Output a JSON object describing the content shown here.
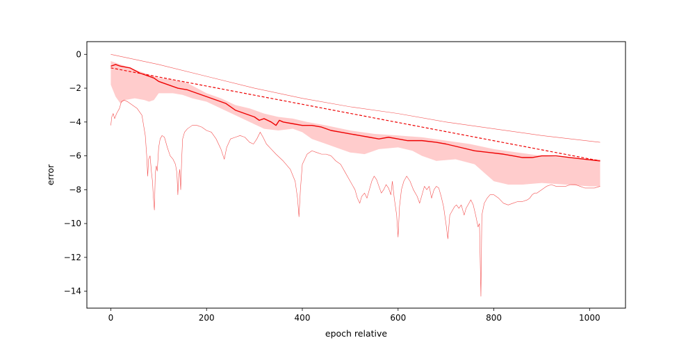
{
  "chart_data": {
    "type": "line",
    "title": "",
    "xlabel": "epoch relative",
    "ylabel": "error",
    "xlim": [
      -50,
      1075
    ],
    "ylim": [
      -15,
      0.75
    ],
    "xticks": [
      0,
      200,
      400,
      600,
      800,
      1000
    ],
    "yticks": [
      0,
      -2,
      -4,
      -6,
      -8,
      -10,
      -12,
      -14
    ],
    "grid": false,
    "legend": "none",
    "colors": {
      "line": "#ee0000",
      "band": "#ff9999"
    },
    "series": [
      {
        "role": "band",
        "upper": [
          [
            0,
            -0.4
          ],
          [
            20,
            -0.6
          ],
          [
            50,
            -0.9
          ],
          [
            80,
            -1.2
          ],
          [
            100,
            -1.4
          ],
          [
            130,
            -1.5
          ],
          [
            160,
            -1.7
          ],
          [
            180,
            -2.0
          ],
          [
            200,
            -2.3
          ],
          [
            230,
            -2.6
          ],
          [
            260,
            -3.0
          ],
          [
            290,
            -3.2
          ],
          [
            320,
            -3.5
          ],
          [
            350,
            -3.7
          ],
          [
            380,
            -3.8
          ],
          [
            410,
            -4.0
          ],
          [
            450,
            -4.2
          ],
          [
            500,
            -4.5
          ],
          [
            550,
            -4.7
          ],
          [
            600,
            -4.8
          ],
          [
            650,
            -4.9
          ],
          [
            700,
            -5.1
          ],
          [
            750,
            -5.3
          ],
          [
            800,
            -5.6
          ],
          [
            850,
            -5.8
          ],
          [
            900,
            -6.0
          ],
          [
            950,
            -6.1
          ],
          [
            1000,
            -6.2
          ],
          [
            1022,
            -6.2
          ]
        ],
        "lower": [
          [
            0,
            -1.8
          ],
          [
            10,
            -2.5
          ],
          [
            20,
            -2.9
          ],
          [
            30,
            -2.7
          ],
          [
            50,
            -2.6
          ],
          [
            70,
            -2.7
          ],
          [
            80,
            -2.8
          ],
          [
            90,
            -2.7
          ],
          [
            100,
            -2.3
          ],
          [
            130,
            -2.3
          ],
          [
            150,
            -2.4
          ],
          [
            170,
            -2.6
          ],
          [
            200,
            -2.8
          ],
          [
            230,
            -3.2
          ],
          [
            260,
            -3.6
          ],
          [
            290,
            -4.0
          ],
          [
            320,
            -4.4
          ],
          [
            350,
            -4.5
          ],
          [
            380,
            -4.4
          ],
          [
            400,
            -4.6
          ],
          [
            420,
            -5.0
          ],
          [
            450,
            -5.3
          ],
          [
            480,
            -5.6
          ],
          [
            500,
            -5.8
          ],
          [
            530,
            -5.9
          ],
          [
            560,
            -5.6
          ],
          [
            600,
            -5.5
          ],
          [
            630,
            -5.7
          ],
          [
            650,
            -6.0
          ],
          [
            680,
            -6.3
          ],
          [
            720,
            -6.2
          ],
          [
            760,
            -6.5
          ],
          [
            780,
            -7.0
          ],
          [
            800,
            -7.5
          ],
          [
            830,
            -7.7
          ],
          [
            860,
            -7.7
          ],
          [
            900,
            -7.6
          ],
          [
            950,
            -7.7
          ],
          [
            1000,
            -7.8
          ],
          [
            1022,
            -7.8
          ]
        ]
      },
      {
        "role": "upper-thin",
        "points": [
          [
            0,
            0.0
          ],
          [
            100,
            -0.6
          ],
          [
            200,
            -1.3
          ],
          [
            300,
            -2.0
          ],
          [
            400,
            -2.6
          ],
          [
            500,
            -3.1
          ],
          [
            600,
            -3.5
          ],
          [
            700,
            -4.0
          ],
          [
            800,
            -4.4
          ],
          [
            900,
            -4.8
          ],
          [
            1022,
            -5.2
          ]
        ]
      },
      {
        "role": "min-thin",
        "points": [
          [
            0,
            -4.2
          ],
          [
            2,
            -3.7
          ],
          [
            5,
            -3.5
          ],
          [
            8,
            -3.8
          ],
          [
            12,
            -3.5
          ],
          [
            18,
            -3.2
          ],
          [
            22,
            -2.8
          ],
          [
            28,
            -2.7
          ],
          [
            35,
            -2.8
          ],
          [
            45,
            -3.0
          ],
          [
            55,
            -3.2
          ],
          [
            65,
            -3.6
          ],
          [
            72,
            -4.8
          ],
          [
            75,
            -6.0
          ],
          [
            77,
            -7.2
          ],
          [
            79,
            -6.2
          ],
          [
            82,
            -6.0
          ],
          [
            85,
            -7.0
          ],
          [
            87,
            -7.5
          ],
          [
            89,
            -8.5
          ],
          [
            91,
            -9.2
          ],
          [
            93,
            -7.0
          ],
          [
            95,
            -6.6
          ],
          [
            97,
            -6.9
          ],
          [
            100,
            -5.5
          ],
          [
            103,
            -5.0
          ],
          [
            107,
            -4.8
          ],
          [
            112,
            -4.9
          ],
          [
            118,
            -5.5
          ],
          [
            124,
            -6.0
          ],
          [
            130,
            -6.2
          ],
          [
            135,
            -6.5
          ],
          [
            138,
            -7.0
          ],
          [
            140,
            -8.3
          ],
          [
            142,
            -7.2
          ],
          [
            144,
            -6.8
          ],
          [
            146,
            -8.0
          ],
          [
            148,
            -6.2
          ],
          [
            150,
            -5.0
          ],
          [
            154,
            -4.6
          ],
          [
            160,
            -4.4
          ],
          [
            170,
            -4.2
          ],
          [
            180,
            -4.2
          ],
          [
            190,
            -4.3
          ],
          [
            200,
            -4.5
          ],
          [
            210,
            -4.6
          ],
          [
            220,
            -5.0
          ],
          [
            230,
            -5.6
          ],
          [
            237,
            -6.2
          ],
          [
            242,
            -5.5
          ],
          [
            250,
            -5.0
          ],
          [
            260,
            -4.9
          ],
          [
            270,
            -4.8
          ],
          [
            280,
            -4.9
          ],
          [
            290,
            -5.2
          ],
          [
            298,
            -5.3
          ],
          [
            305,
            -5.0
          ],
          [
            312,
            -4.6
          ],
          [
            318,
            -4.9
          ],
          [
            325,
            -5.3
          ],
          [
            335,
            -5.6
          ],
          [
            345,
            -5.9
          ],
          [
            360,
            -6.3
          ],
          [
            375,
            -6.8
          ],
          [
            385,
            -7.5
          ],
          [
            390,
            -8.5
          ],
          [
            393,
            -9.6
          ],
          [
            396,
            -8.0
          ],
          [
            400,
            -6.5
          ],
          [
            410,
            -5.9
          ],
          [
            420,
            -5.7
          ],
          [
            430,
            -5.8
          ],
          [
            440,
            -5.9
          ],
          [
            450,
            -5.9
          ],
          [
            460,
            -6.0
          ],
          [
            470,
            -6.3
          ],
          [
            480,
            -6.5
          ],
          [
            490,
            -7.0
          ],
          [
            500,
            -7.5
          ],
          [
            510,
            -8.0
          ],
          [
            515,
            -8.5
          ],
          [
            520,
            -8.8
          ],
          [
            524,
            -8.4
          ],
          [
            530,
            -8.2
          ],
          [
            535,
            -8.5
          ],
          [
            540,
            -8.0
          ],
          [
            545,
            -7.5
          ],
          [
            550,
            -7.2
          ],
          [
            555,
            -7.4
          ],
          [
            560,
            -7.8
          ],
          [
            565,
            -8.2
          ],
          [
            570,
            -8.0
          ],
          [
            575,
            -7.7
          ],
          [
            580,
            -7.9
          ],
          [
            585,
            -8.3
          ],
          [
            588,
            -7.5
          ],
          [
            592,
            -8.5
          ],
          [
            597,
            -9.5
          ],
          [
            600,
            -10.8
          ],
          [
            603,
            -9.0
          ],
          [
            607,
            -8.0
          ],
          [
            612,
            -7.5
          ],
          [
            618,
            -7.2
          ],
          [
            625,
            -7.5
          ],
          [
            632,
            -8.0
          ],
          [
            640,
            -8.4
          ],
          [
            645,
            -8.8
          ],
          [
            650,
            -8.3
          ],
          [
            655,
            -7.8
          ],
          [
            660,
            -8.0
          ],
          [
            665,
            -7.8
          ],
          [
            670,
            -8.5
          ],
          [
            675,
            -8.0
          ],
          [
            680,
            -7.8
          ],
          [
            685,
            -7.9
          ],
          [
            690,
            -8.4
          ],
          [
            695,
            -9.0
          ],
          [
            700,
            -10.0
          ],
          [
            704,
            -10.9
          ],
          [
            708,
            -9.5
          ],
          [
            712,
            -9.3
          ],
          [
            718,
            -9.0
          ],
          [
            722,
            -8.9
          ],
          [
            727,
            -9.1
          ],
          [
            732,
            -8.9
          ],
          [
            738,
            -9.5
          ],
          [
            742,
            -9.1
          ],
          [
            748,
            -8.8
          ],
          [
            752,
            -8.6
          ],
          [
            757,
            -8.9
          ],
          [
            762,
            -9.5
          ],
          [
            767,
            -10.2
          ],
          [
            770,
            -10.0
          ],
          [
            773,
            -14.3
          ],
          [
            775,
            -9.5
          ],
          [
            780,
            -8.8
          ],
          [
            786,
            -8.5
          ],
          [
            792,
            -8.3
          ],
          [
            800,
            -8.3
          ],
          [
            810,
            -8.5
          ],
          [
            820,
            -8.8
          ],
          [
            830,
            -8.9
          ],
          [
            840,
            -8.8
          ],
          [
            850,
            -8.7
          ],
          [
            860,
            -8.7
          ],
          [
            870,
            -8.6
          ],
          [
            875,
            -8.5
          ],
          [
            880,
            -8.3
          ],
          [
            885,
            -8.2
          ],
          [
            890,
            -8.2
          ],
          [
            895,
            -8.1
          ],
          [
            900,
            -8.0
          ],
          [
            910,
            -7.8
          ],
          [
            920,
            -7.7
          ],
          [
            930,
            -7.8
          ],
          [
            940,
            -7.8
          ],
          [
            950,
            -7.8
          ],
          [
            960,
            -7.7
          ],
          [
            970,
            -7.7
          ],
          [
            980,
            -7.8
          ],
          [
            990,
            -7.9
          ],
          [
            1000,
            -7.9
          ],
          [
            1010,
            -7.9
          ],
          [
            1022,
            -7.8
          ]
        ]
      },
      {
        "role": "mean",
        "points": [
          [
            0,
            -0.7
          ],
          [
            10,
            -0.6
          ],
          [
            20,
            -0.7
          ],
          [
            40,
            -0.8
          ],
          [
            60,
            -1.1
          ],
          [
            80,
            -1.3
          ],
          [
            90,
            -1.4
          ],
          [
            100,
            -1.6
          ],
          [
            120,
            -1.8
          ],
          [
            140,
            -2.0
          ],
          [
            160,
            -2.1
          ],
          [
            180,
            -2.3
          ],
          [
            200,
            -2.5
          ],
          [
            220,
            -2.7
          ],
          [
            240,
            -2.9
          ],
          [
            260,
            -3.3
          ],
          [
            280,
            -3.5
          ],
          [
            300,
            -3.7
          ],
          [
            310,
            -3.9
          ],
          [
            320,
            -3.8
          ],
          [
            335,
            -4.0
          ],
          [
            345,
            -4.2
          ],
          [
            352,
            -3.9
          ],
          [
            360,
            -4.0
          ],
          [
            380,
            -4.1
          ],
          [
            400,
            -4.2
          ],
          [
            420,
            -4.2
          ],
          [
            440,
            -4.3
          ],
          [
            460,
            -4.5
          ],
          [
            480,
            -4.6
          ],
          [
            500,
            -4.7
          ],
          [
            520,
            -4.8
          ],
          [
            540,
            -4.9
          ],
          [
            560,
            -5.0
          ],
          [
            580,
            -4.9
          ],
          [
            600,
            -5.0
          ],
          [
            620,
            -5.1
          ],
          [
            650,
            -5.1
          ],
          [
            680,
            -5.2
          ],
          [
            700,
            -5.3
          ],
          [
            730,
            -5.5
          ],
          [
            760,
            -5.7
          ],
          [
            790,
            -5.8
          ],
          [
            820,
            -5.9
          ],
          [
            840,
            -6.0
          ],
          [
            860,
            -6.1
          ],
          [
            880,
            -6.1
          ],
          [
            900,
            -6.0
          ],
          [
            930,
            -6.0
          ],
          [
            960,
            -6.1
          ],
          [
            990,
            -6.2
          ],
          [
            1022,
            -6.3
          ]
        ]
      },
      {
        "role": "trend-dashed",
        "points": [
          [
            0,
            -0.8
          ],
          [
            1022,
            -6.3
          ]
        ]
      }
    ]
  }
}
